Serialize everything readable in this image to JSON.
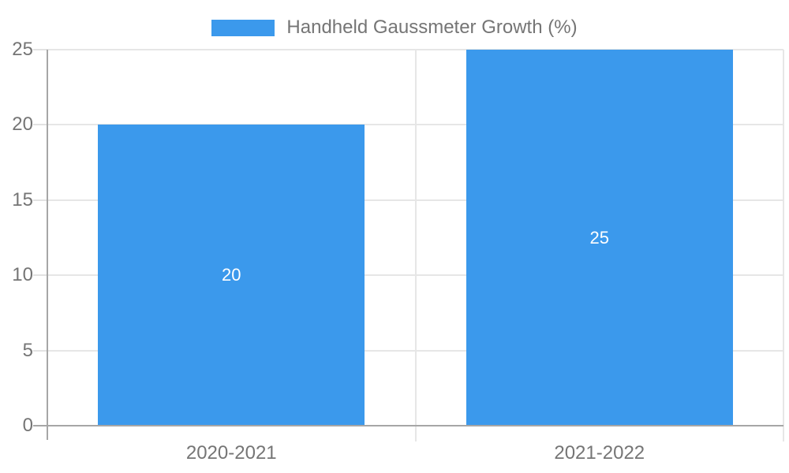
{
  "chart_data": {
    "type": "bar",
    "title": "Handheld Gaussmeter Growth (%)",
    "categories": [
      "2020-2021",
      "2021-2022"
    ],
    "series": [
      {
        "name": "Handheld Gaussmeter Growth (%)",
        "values": [
          20,
          25
        ]
      }
    ],
    "value_labels": [
      "20",
      "25"
    ],
    "xlabel": "",
    "ylabel": "",
    "ylim": [
      0,
      25
    ],
    "yticks": [
      0,
      5,
      10,
      15,
      20,
      25
    ],
    "grid": true,
    "legend_position": "top"
  },
  "legend": {
    "label": "Handheld Gaussmeter Growth (%)"
  },
  "colors": {
    "bar": "#3b99ec",
    "axis_text": "#757575",
    "axis_line": "#a6a6a6",
    "gridline": "#e6e6e6",
    "value_label": "#ffffff",
    "background": "#ffffff"
  }
}
